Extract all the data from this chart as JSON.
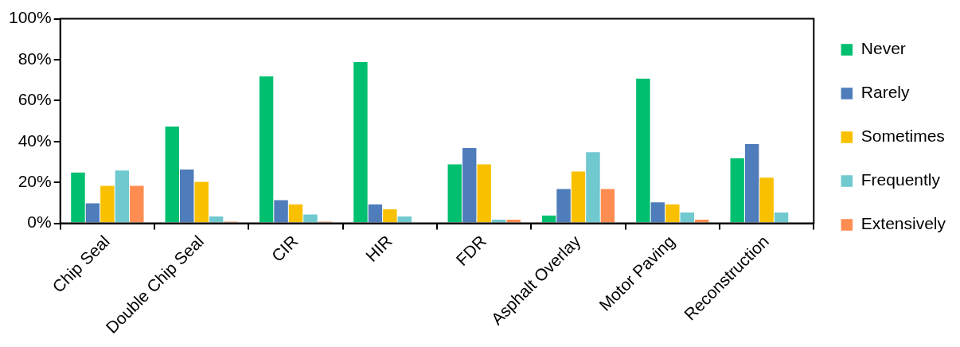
{
  "chart_data": {
    "type": "bar",
    "categories": [
      "Chip Seal",
      "Double Chip Seal",
      "CIR",
      "HIR",
      "FDR",
      "Asphalt Overlay",
      "Motor Paving",
      "Reconstruction"
    ],
    "series": [
      {
        "name": "Never",
        "color": "#00bf6f",
        "values": [
          25,
          47.5,
          72,
          79,
          29,
          4,
          71,
          32
        ]
      },
      {
        "name": "Rarely",
        "color": "#4f7cba",
        "values": [
          10,
          26.5,
          11.5,
          9.5,
          37,
          17,
          10.5,
          39
        ]
      },
      {
        "name": "Sometimes",
        "color": "#f9c000",
        "values": [
          18.5,
          20.5,
          9.5,
          7,
          29,
          25.5,
          9.5,
          22.5
        ]
      },
      {
        "name": "Frequently",
        "color": "#6fc9cf",
        "values": [
          26,
          3.5,
          4.5,
          3.5,
          2,
          35,
          5.5,
          5.5
        ]
      },
      {
        "name": "Extensively",
        "color": "#ff8c50",
        "values": [
          18.5,
          1,
          1,
          0,
          2,
          17,
          2,
          0
        ]
      }
    ],
    "ylim": [
      0,
      100
    ],
    "yticks": [
      {
        "value": 0,
        "label": "0%"
      },
      {
        "value": 20,
        "label": "20%"
      },
      {
        "value": 40,
        "label": "40%"
      },
      {
        "value": 60,
        "label": "60%"
      },
      {
        "value": 80,
        "label": "80%"
      },
      {
        "value": 100,
        "label": "100%"
      }
    ],
    "grid": false,
    "legend": "right"
  }
}
